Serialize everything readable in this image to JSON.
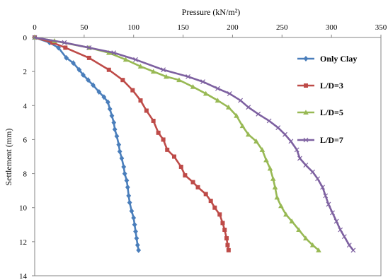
{
  "chart_data": {
    "type": "line",
    "xlabel": "Pressure  (kN/m²)",
    "ylabel": "Settlement (mm)",
    "xlim": [
      0,
      350
    ],
    "ylim": [
      0,
      14
    ],
    "y_inverted": true,
    "x_axis_position": "top",
    "x_ticks": [
      0,
      50,
      100,
      150,
      200,
      250,
      300,
      350
    ],
    "y_ticks": [
      0,
      2,
      4,
      6,
      8,
      10,
      12,
      14
    ],
    "x_tick_labels": [
      "0",
      "50",
      "100",
      "150",
      "200",
      "250",
      "300",
      "350"
    ],
    "y_tick_labels": [
      "0",
      "2",
      "4",
      "6",
      "8",
      "10",
      "12",
      "14"
    ],
    "grid": false,
    "legend_position": "right",
    "series": [
      {
        "name": "Only Clay",
        "color": "#4a7ebb",
        "marker": "diamond",
        "points": [
          [
            0,
            0
          ],
          [
            15,
            0.3
          ],
          [
            24,
            0.6
          ],
          [
            32,
            1.2
          ],
          [
            39,
            1.5
          ],
          [
            45,
            1.9
          ],
          [
            49,
            2.2
          ],
          [
            54,
            2.5
          ],
          [
            59,
            2.8
          ],
          [
            65,
            3.2
          ],
          [
            70,
            3.5
          ],
          [
            74,
            3.8
          ],
          [
            76,
            4.2
          ],
          [
            78,
            4.6
          ],
          [
            80,
            5.0
          ],
          [
            81,
            5.4
          ],
          [
            83,
            5.8
          ],
          [
            85,
            6.3
          ],
          [
            86,
            6.7
          ],
          [
            88,
            7.1
          ],
          [
            90,
            7.6
          ],
          [
            91,
            8.0
          ],
          [
            93,
            8.4
          ],
          [
            94,
            8.8
          ],
          [
            95,
            9.3
          ],
          [
            96,
            9.7
          ],
          [
            98,
            10.2
          ],
          [
            100,
            10.6
          ],
          [
            101,
            11.0
          ],
          [
            102,
            11.4
          ],
          [
            103,
            11.8
          ],
          [
            104,
            12.2
          ],
          [
            105,
            12.5
          ]
        ]
      },
      {
        "name": "L/D=3",
        "color": "#be4b48",
        "marker": "square",
        "points": [
          [
            0,
            0
          ],
          [
            18,
            0.3
          ],
          [
            31,
            0.6
          ],
          [
            55,
            1.2
          ],
          [
            75,
            1.9
          ],
          [
            89,
            2.5
          ],
          [
            99,
            3.1
          ],
          [
            107,
            3.7
          ],
          [
            113,
            4.3
          ],
          [
            120,
            4.9
          ],
          [
            125,
            5.6
          ],
          [
            130,
            6.0
          ],
          [
            134,
            6.6
          ],
          [
            141,
            7.0
          ],
          [
            148,
            7.6
          ],
          [
            152,
            8.1
          ],
          [
            160,
            8.5
          ],
          [
            165,
            8.8
          ],
          [
            173,
            9.2
          ],
          [
            178,
            9.6
          ],
          [
            182,
            10.0
          ],
          [
            187,
            10.4
          ],
          [
            190,
            10.9
          ],
          [
            192,
            11.3
          ],
          [
            194,
            11.8
          ],
          [
            195,
            12.2
          ],
          [
            196,
            12.5
          ]
        ]
      },
      {
        "name": "L/D=5",
        "color": "#98b954",
        "marker": "triangle",
        "points": [
          [
            0,
            0
          ],
          [
            20,
            0.2
          ],
          [
            55,
            0.6
          ],
          [
            75,
            0.9
          ],
          [
            92,
            1.3
          ],
          [
            107,
            1.7
          ],
          [
            120,
            2.0
          ],
          [
            133,
            2.3
          ],
          [
            146,
            2.5
          ],
          [
            160,
            2.9
          ],
          [
            173,
            3.3
          ],
          [
            185,
            3.7
          ],
          [
            196,
            4.1
          ],
          [
            204,
            4.6
          ],
          [
            210,
            5.2
          ],
          [
            216,
            5.7
          ],
          [
            224,
            6.1
          ],
          [
            230,
            6.6
          ],
          [
            234,
            7.2
          ],
          [
            238,
            7.7
          ],
          [
            241,
            8.3
          ],
          [
            243,
            8.8
          ],
          [
            245,
            9.4
          ],
          [
            249,
            9.9
          ],
          [
            254,
            10.4
          ],
          [
            260,
            10.8
          ],
          [
            267,
            11.3
          ],
          [
            274,
            11.8
          ],
          [
            281,
            12.2
          ],
          [
            287,
            12.5
          ]
        ]
      },
      {
        "name": "L/D=7",
        "color": "#7d60a0",
        "marker": "x",
        "points": [
          [
            0,
            0
          ],
          [
            30,
            0.3
          ],
          [
            55,
            0.6
          ],
          [
            80,
            0.9
          ],
          [
            102,
            1.3
          ],
          [
            130,
            1.9
          ],
          [
            155,
            2.3
          ],
          [
            170,
            2.6
          ],
          [
            185,
            3.0
          ],
          [
            197,
            3.3
          ],
          [
            208,
            3.7
          ],
          [
            216,
            4.1
          ],
          [
            226,
            4.5
          ],
          [
            237,
            4.9
          ],
          [
            246,
            5.3
          ],
          [
            253,
            5.7
          ],
          [
            259,
            6.1
          ],
          [
            265,
            6.6
          ],
          [
            268,
            7.1
          ],
          [
            274,
            7.5
          ],
          [
            281,
            7.9
          ],
          [
            286,
            8.3
          ],
          [
            291,
            8.8
          ],
          [
            294,
            9.3
          ],
          [
            297,
            9.8
          ],
          [
            301,
            10.3
          ],
          [
            305,
            10.8
          ],
          [
            309,
            11.3
          ],
          [
            313,
            11.7
          ],
          [
            318,
            12.2
          ],
          [
            322,
            12.5
          ]
        ]
      }
    ]
  }
}
